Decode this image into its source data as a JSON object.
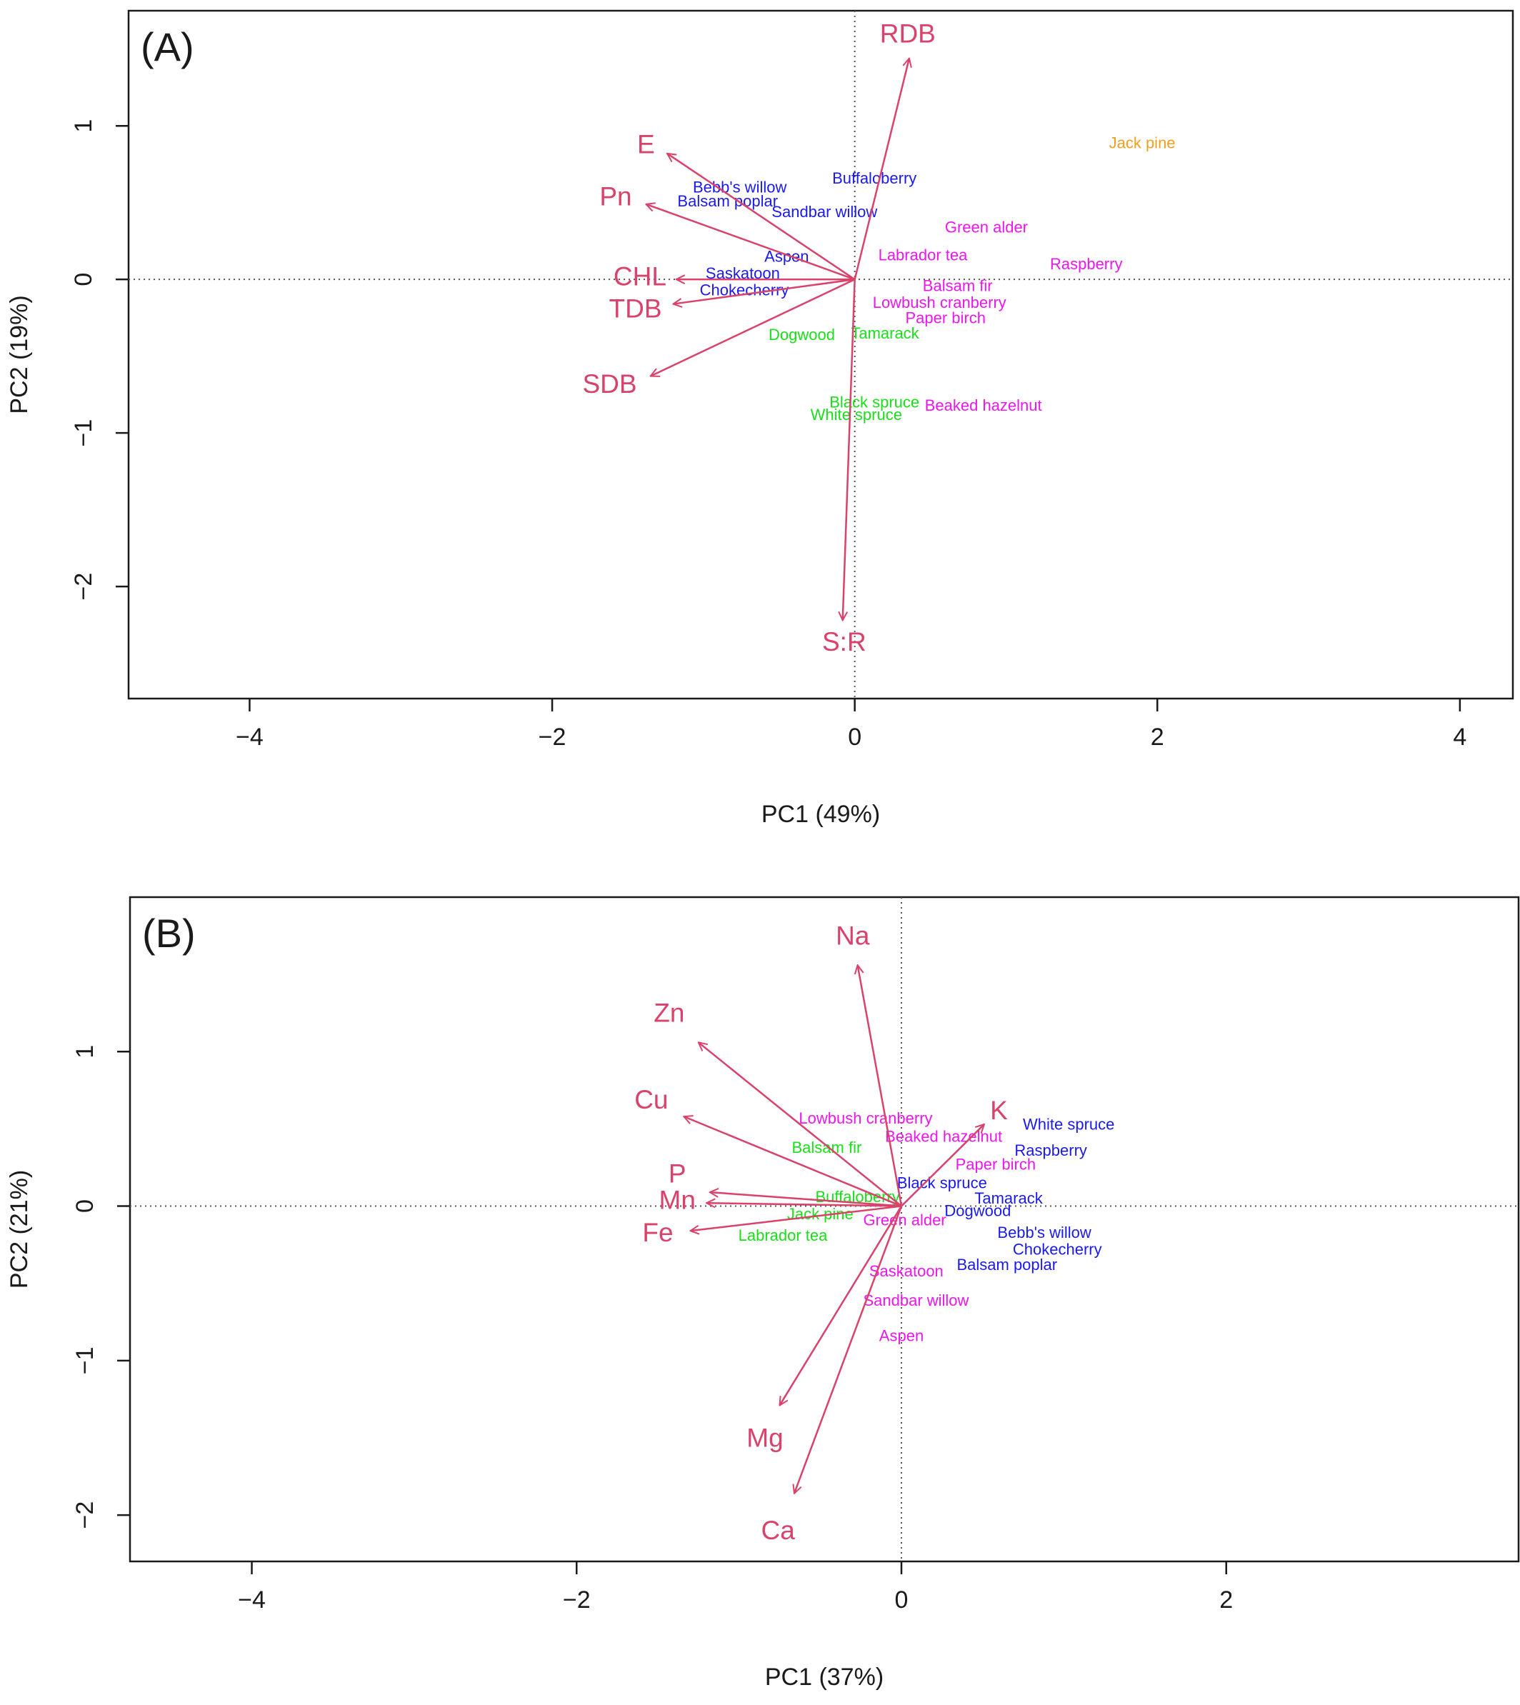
{
  "colors": {
    "arrow": "#d9426a",
    "group_blue": "#1a1aee",
    "group_magenta": "#ee16ee",
    "group_green": "#19e019",
    "group_orange": "#f0a020",
    "axis": "#1a1a1a",
    "refline": "#555555"
  },
  "chart_data": [
    {
      "type": "scatter",
      "subtype": "biplot",
      "panel_label": "(A)",
      "xlabel": "PC1 (49%)",
      "ylabel": "PC2 (19%)",
      "xlim": [
        -4.8,
        4.35
      ],
      "ylim": [
        -2.73,
        1.75
      ],
      "xticks": [
        -4,
        -2,
        0,
        2,
        4
      ],
      "xtick_labels": [
        "−4",
        "−2",
        "0",
        "2",
        "4"
      ],
      "yticks": [
        -2,
        -1,
        0,
        1
      ],
      "ytick_labels": [
        "−2",
        "−1",
        "0",
        "1"
      ],
      "reference_lines": {
        "x": 0,
        "y": 0,
        "style": "dotted"
      },
      "variables": [
        {
          "name": "RDB",
          "x": 0.36,
          "y": 1.44,
          "lx": 0.35,
          "ly": 1.6
        },
        {
          "name": "E",
          "x": -1.24,
          "y": 0.82,
          "lx": -1.38,
          "ly": 0.88
        },
        {
          "name": "Pn",
          "x": -1.38,
          "y": 0.49,
          "lx": -1.58,
          "ly": 0.54
        },
        {
          "name": "CHL",
          "x": -1.18,
          "y": 0.0,
          "lx": -1.42,
          "ly": 0.02
        },
        {
          "name": "TDB",
          "x": -1.2,
          "y": -0.16,
          "lx": -1.45,
          "ly": -0.19
        },
        {
          "name": "SDB",
          "x": -1.35,
          "y": -0.63,
          "lx": -1.62,
          "ly": -0.68
        },
        {
          "name": "S:R",
          "x": -0.08,
          "y": -2.22,
          "lx": -0.07,
          "ly": -2.36
        }
      ],
      "observations": [
        {
          "name": "Jack pine",
          "x": 1.9,
          "y": 0.89,
          "group": "orange"
        },
        {
          "name": "Buffaloberry",
          "x": 0.13,
          "y": 0.66,
          "group": "blue"
        },
        {
          "name": "Bebb's willow",
          "x": -0.76,
          "y": 0.6,
          "group": "blue"
        },
        {
          "name": "Balsam poplar",
          "x": -0.84,
          "y": 0.51,
          "group": "blue"
        },
        {
          "name": "Sandbar willow",
          "x": -0.2,
          "y": 0.44,
          "group": "blue"
        },
        {
          "name": "Green alder",
          "x": 0.87,
          "y": 0.34,
          "group": "magenta"
        },
        {
          "name": "Labrador tea",
          "x": 0.45,
          "y": 0.16,
          "group": "magenta"
        },
        {
          "name": "Raspberry",
          "x": 1.53,
          "y": 0.1,
          "group": "magenta"
        },
        {
          "name": "Aspen",
          "x": -0.45,
          "y": 0.15,
          "group": "blue"
        },
        {
          "name": "Saskatoon",
          "x": -0.74,
          "y": 0.04,
          "group": "blue"
        },
        {
          "name": "Chokecherry",
          "x": -0.73,
          "y": -0.07,
          "group": "blue"
        },
        {
          "name": "Balsam fir",
          "x": 0.68,
          "y": -0.04,
          "group": "magenta"
        },
        {
          "name": "Lowbush cranberry",
          "x": 0.56,
          "y": -0.15,
          "group": "magenta"
        },
        {
          "name": "Paper birch",
          "x": 0.6,
          "y": -0.25,
          "group": "magenta"
        },
        {
          "name": "Dogwood",
          "x": -0.35,
          "y": -0.36,
          "group": "green"
        },
        {
          "name": "Tamarack",
          "x": 0.2,
          "y": -0.35,
          "group": "green"
        },
        {
          "name": "Black spruce",
          "x": 0.13,
          "y": -0.8,
          "group": "green"
        },
        {
          "name": "White spruce",
          "x": 0.01,
          "y": -0.88,
          "group": "green"
        },
        {
          "name": "Beaked hazelnut",
          "x": 0.85,
          "y": -0.82,
          "group": "magenta"
        }
      ]
    },
    {
      "type": "scatter",
      "subtype": "biplot",
      "panel_label": "(B)",
      "xlabel": "PC1 (37%)",
      "ylabel": "PC2 (21%)",
      "xlim": [
        -4.75,
        3.8
      ],
      "ylim": [
        -2.3,
        2.0
      ],
      "xticks": [
        -4,
        -2,
        0,
        2
      ],
      "xtick_labels": [
        "−4",
        "−2",
        "0",
        "2"
      ],
      "yticks": [
        -2,
        -1,
        0,
        1
      ],
      "ytick_labels": [
        "−2",
        "−1",
        "0",
        "1"
      ],
      "reference_lines": {
        "x": 0,
        "y": 0,
        "style": "dotted"
      },
      "variables": [
        {
          "name": "Na",
          "x": -0.27,
          "y": 1.56,
          "lx": -0.3,
          "ly": 1.75
        },
        {
          "name": "Zn",
          "x": -1.25,
          "y": 1.06,
          "lx": -1.43,
          "ly": 1.25
        },
        {
          "name": "Cu",
          "x": -1.34,
          "y": 0.58,
          "lx": -1.54,
          "ly": 0.69
        },
        {
          "name": "P",
          "x": -1.18,
          "y": 0.09,
          "lx": -1.38,
          "ly": 0.21
        },
        {
          "name": "Mn",
          "x": -1.2,
          "y": 0.02,
          "lx": -1.38,
          "ly": 0.04
        },
        {
          "name": "Fe",
          "x": -1.3,
          "y": -0.16,
          "lx": -1.5,
          "ly": -0.17
        },
        {
          "name": "K",
          "x": 0.51,
          "y": 0.53,
          "lx": 0.6,
          "ly": 0.62
        },
        {
          "name": "Mg",
          "x": -0.75,
          "y": -1.29,
          "lx": -0.84,
          "ly": -1.5
        },
        {
          "name": "Ca",
          "x": -0.66,
          "y": -1.86,
          "lx": -0.76,
          "ly": -2.1
        }
      ],
      "observations": [
        {
          "name": "Lowbush cranberry",
          "x": -0.22,
          "y": 0.57,
          "group": "magenta"
        },
        {
          "name": "Beaked hazelnut",
          "x": 0.26,
          "y": 0.45,
          "group": "magenta"
        },
        {
          "name": "Balsam fir",
          "x": -0.46,
          "y": 0.38,
          "group": "green"
        },
        {
          "name": "White spruce",
          "x": 1.03,
          "y": 0.53,
          "group": "blue"
        },
        {
          "name": "Raspberry",
          "x": 0.92,
          "y": 0.36,
          "group": "blue"
        },
        {
          "name": "Paper birch",
          "x": 0.58,
          "y": 0.27,
          "group": "magenta"
        },
        {
          "name": "Black spruce",
          "x": 0.25,
          "y": 0.15,
          "group": "blue"
        },
        {
          "name": "Buffaloberry",
          "x": -0.27,
          "y": 0.06,
          "group": "green"
        },
        {
          "name": "Tamarack",
          "x": 0.66,
          "y": 0.05,
          "group": "blue"
        },
        {
          "name": "Dogwood",
          "x": 0.47,
          "y": -0.03,
          "group": "blue"
        },
        {
          "name": "Jack pine",
          "x": -0.5,
          "y": -0.05,
          "group": "green"
        },
        {
          "name": "Green alder",
          "x": 0.02,
          "y": -0.09,
          "group": "magenta"
        },
        {
          "name": "Bebb's willow",
          "x": 0.88,
          "y": -0.17,
          "group": "blue"
        },
        {
          "name": "Labrador tea",
          "x": -0.73,
          "y": -0.19,
          "group": "green"
        },
        {
          "name": "Chokecherry",
          "x": 0.96,
          "y": -0.28,
          "group": "blue"
        },
        {
          "name": "Balsam poplar",
          "x": 0.65,
          "y": -0.38,
          "group": "blue"
        },
        {
          "name": "Saskatoon",
          "x": 0.03,
          "y": -0.42,
          "group": "magenta"
        },
        {
          "name": "Sandbar willow",
          "x": 0.09,
          "y": -0.61,
          "group": "magenta"
        },
        {
          "name": "Aspen",
          "x": 0.0,
          "y": -0.84,
          "group": "magenta"
        }
      ]
    }
  ]
}
